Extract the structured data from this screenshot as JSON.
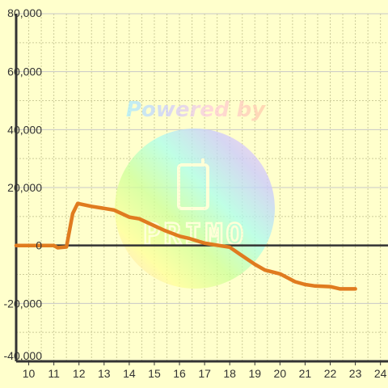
{
  "colors": {
    "background": "#ffffcc",
    "grid_major": "#c8c8c8",
    "grid_minor": "#cccc99",
    "axis": "#333333",
    "line": "#e07b1f"
  },
  "watermark": {
    "text": "Powered by",
    "logo_text": "PRIMO"
  },
  "chart_data": {
    "type": "line",
    "title": "",
    "xlabel": "",
    "ylabel": "",
    "xlim": [
      9.5,
      24.3
    ],
    "ylim": [
      -40000,
      80000
    ],
    "x_ticks": [
      10,
      11,
      12,
      13,
      14,
      15,
      16,
      17,
      18,
      19,
      20,
      21,
      22,
      23,
      24
    ],
    "x_tick_labels": [
      "10",
      "11",
      "12",
      "13",
      "14",
      "15",
      "16",
      "17",
      "18",
      "19",
      "20",
      "21",
      "22",
      "23",
      "24"
    ],
    "y_ticks": [
      -40000,
      -20000,
      0,
      20000,
      40000,
      60000,
      80000
    ],
    "y_tick_labels": [
      "-40,000",
      "-20,000",
      "0",
      "20,000",
      "40,000",
      "60,000",
      "80,000"
    ],
    "grid": true,
    "legend": "none",
    "series": [
      {
        "x": [
          9.5,
          11.0,
          11.15,
          11.5,
          11.75,
          11.95,
          12.5,
          13.0,
          13.4,
          14.0,
          14.4,
          15.0,
          15.4,
          16.0,
          16.4,
          17.0,
          17.4,
          18.0,
          18.4,
          19.0,
          19.4,
          20.0,
          20.6,
          21.0,
          21.4,
          22.0,
          22.4,
          23.0
        ],
        "y": [
          0,
          0,
          -800,
          -500,
          11000,
          14500,
          13500,
          12800,
          12200,
          9800,
          9200,
          6800,
          5200,
          3200,
          2400,
          800,
          200,
          -600,
          -3000,
          -6500,
          -8500,
          -9800,
          -12500,
          -13500,
          -14000,
          -14200,
          -15000,
          -15000
        ]
      }
    ]
  }
}
